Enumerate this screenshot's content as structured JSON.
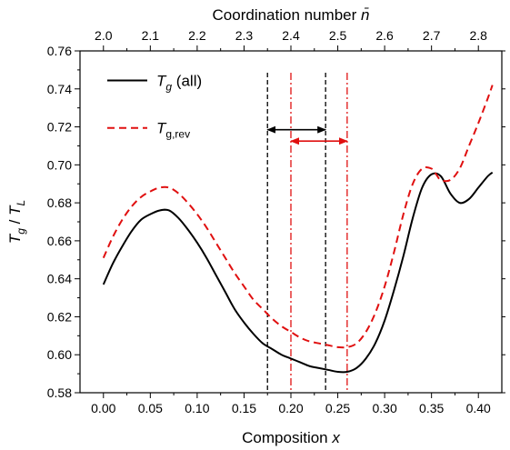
{
  "chart_data": {
    "type": "line",
    "top_axis_title": "Coordination number n̄",
    "xlabel": "Composition x",
    "ylabel": "Tg / TL",
    "xlim": [
      -0.025,
      0.425
    ],
    "ylim": [
      0.58,
      0.76
    ],
    "x_ticks": [
      "0.00",
      "0.05",
      "0.10",
      "0.15",
      "0.20",
      "0.25",
      "0.30",
      "0.35",
      "0.40"
    ],
    "x_tick_values": [
      0.0,
      0.05,
      0.1,
      0.15,
      0.2,
      0.25,
      0.3,
      0.35,
      0.4
    ],
    "y_ticks": [
      "0.58",
      "0.60",
      "0.62",
      "0.64",
      "0.66",
      "0.68",
      "0.70",
      "0.72",
      "0.74",
      "0.76"
    ],
    "y_tick_values": [
      0.58,
      0.6,
      0.62,
      0.64,
      0.66,
      0.68,
      0.7,
      0.72,
      0.74,
      0.76
    ],
    "top_ticks": [
      "2.0",
      "2.1",
      "2.2",
      "2.3",
      "2.4",
      "2.5",
      "2.6",
      "2.7",
      "2.8"
    ],
    "top_tick_values": [
      2.0,
      2.1,
      2.2,
      2.3,
      2.4,
      2.5,
      2.6,
      2.7,
      2.8
    ],
    "top_axis_map": {
      "n0": 2.0,
      "slope": 2.0
    },
    "legend_position": "top-left",
    "grid": false,
    "series": [
      {
        "name": "Tg (all)",
        "legend_main": "T",
        "legend_sub": "g",
        "legend_suffix": " (all)",
        "color": "#000000",
        "dash": "solid",
        "x": [
          0.0,
          0.01,
          0.02,
          0.03,
          0.04,
          0.05,
          0.06,
          0.07,
          0.08,
          0.09,
          0.1,
          0.11,
          0.12,
          0.13,
          0.14,
          0.15,
          0.16,
          0.17,
          0.18,
          0.19,
          0.2,
          0.21,
          0.22,
          0.23,
          0.24,
          0.25,
          0.26,
          0.27,
          0.28,
          0.29,
          0.3,
          0.31,
          0.32,
          0.33,
          0.34,
          0.35,
          0.36,
          0.37,
          0.38,
          0.39,
          0.4,
          0.41,
          0.415
        ],
        "y": [
          0.637,
          0.648,
          0.657,
          0.665,
          0.671,
          0.674,
          0.676,
          0.676,
          0.672,
          0.666,
          0.659,
          0.651,
          0.642,
          0.633,
          0.624,
          0.617,
          0.611,
          0.606,
          0.603,
          0.6,
          0.598,
          0.596,
          0.594,
          0.593,
          0.592,
          0.591,
          0.591,
          0.593,
          0.598,
          0.606,
          0.618,
          0.634,
          0.652,
          0.672,
          0.688,
          0.695,
          0.694,
          0.685,
          0.68,
          0.682,
          0.688,
          0.694,
          0.696
        ]
      },
      {
        "name": "Tg,rev",
        "legend_main": "T",
        "legend_sub": "g,rev",
        "legend_suffix": "",
        "color": "#e01010",
        "dash": "dashed",
        "x": [
          0.0,
          0.01,
          0.02,
          0.03,
          0.04,
          0.05,
          0.06,
          0.07,
          0.08,
          0.09,
          0.1,
          0.11,
          0.12,
          0.13,
          0.14,
          0.15,
          0.16,
          0.17,
          0.18,
          0.19,
          0.2,
          0.21,
          0.22,
          0.23,
          0.24,
          0.25,
          0.26,
          0.27,
          0.28,
          0.29,
          0.3,
          0.31,
          0.32,
          0.33,
          0.34,
          0.35,
          0.355,
          0.36,
          0.37,
          0.38,
          0.39,
          0.4,
          0.41,
          0.415
        ],
        "y": [
          0.651,
          0.662,
          0.671,
          0.678,
          0.683,
          0.686,
          0.688,
          0.688,
          0.685,
          0.68,
          0.674,
          0.667,
          0.659,
          0.651,
          0.643,
          0.636,
          0.629,
          0.624,
          0.619,
          0.615,
          0.612,
          0.609,
          0.607,
          0.606,
          0.605,
          0.604,
          0.604,
          0.606,
          0.612,
          0.622,
          0.636,
          0.654,
          0.674,
          0.69,
          0.698,
          0.698,
          0.695,
          0.692,
          0.692,
          0.698,
          0.71,
          0.722,
          0.735,
          0.742
        ]
      }
    ],
    "annotations": {
      "vlines": [
        {
          "x": 0.175,
          "color": "#000000",
          "style": "dashed"
        },
        {
          "x": 0.237,
          "color": "#000000",
          "style": "dashed"
        },
        {
          "x": 0.2,
          "color": "#e01010",
          "style": "dashdot"
        },
        {
          "x": 0.26,
          "color": "#e01010",
          "style": "dashdot"
        }
      ],
      "arrows": [
        {
          "x1": 0.175,
          "x2": 0.237,
          "y": 0.7185,
          "color": "#000000"
        },
        {
          "x1": 0.2,
          "x2": 0.26,
          "y": 0.7125,
          "color": "#e01010"
        }
      ]
    }
  }
}
